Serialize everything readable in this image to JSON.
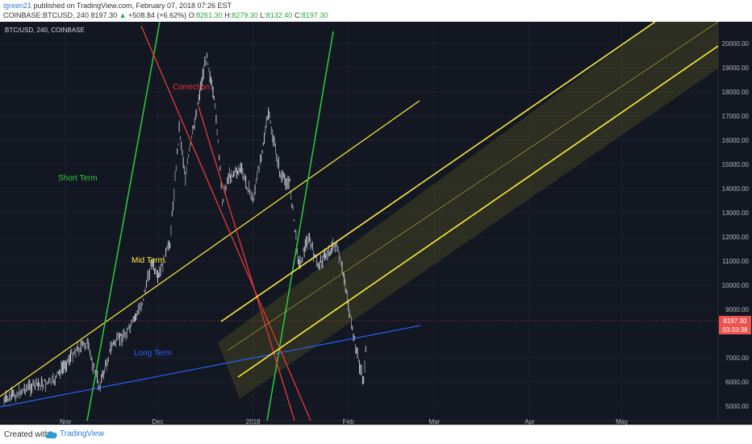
{
  "header": {
    "user": "igreen21",
    "published_text": "published on TradingView.com, February 07, 2018 07:26 EST",
    "symbol": "COINBASE:BTCUSD, 240",
    "last": "8197.30",
    "change": "+508.84 (+6.62%)",
    "open_label": "O:",
    "open": "8261.30",
    "high_label": "H:",
    "high": "8279.30",
    "low_label": "L:",
    "low": "8132.40",
    "close_label": "C:",
    "close": "8197.30"
  },
  "chart": {
    "symbol_label": "BTC/USD, 240, COINBASE",
    "price_axis_ticks": [
      "20000.00",
      "19000.00",
      "18000.00",
      "17000.00",
      "16000.00",
      "15000.00",
      "14000.00",
      "13000.00",
      "12000.00",
      "11000.00",
      "10000.00",
      "9000.00",
      "7000.00",
      "6000.00",
      "5000.00"
    ],
    "time_axis_labels": [
      "Nov",
      "Dec",
      "2018",
      "Feb",
      "Mar",
      "Apr",
      "May"
    ],
    "current_price_label": "8197.30",
    "countdown_label": "03:33:38",
    "annotations": {
      "correction": "Correction",
      "short_term": "Short Term",
      "mid_term": "Mid Term",
      "long_term": "Long Term"
    },
    "colors": {
      "background": "#131722",
      "correction": "#e53935",
      "short_term": "#2ecc40",
      "mid_term": "#ffeb3b",
      "long_term": "#2962ff",
      "price_tag": "#ef5350"
    }
  },
  "chart_data": {
    "type": "line",
    "ylim": [
      4400,
      20900
    ],
    "price_path": [
      [
        "2017-10-12",
        5200
      ],
      [
        "2017-10-20",
        5800
      ],
      [
        "2017-10-28",
        6000
      ],
      [
        "2017-11-04",
        7300
      ],
      [
        "2017-11-08",
        7600
      ],
      [
        "2017-11-12",
        5800
      ],
      [
        "2017-11-16",
        7500
      ],
      [
        "2017-11-22",
        8200
      ],
      [
        "2017-11-26",
        9300
      ],
      [
        "2017-11-29",
        11000
      ],
      [
        "2017-12-01",
        10200
      ],
      [
        "2017-12-05",
        11800
      ],
      [
        "2017-12-08",
        16500
      ],
      [
        "2017-12-10",
        14500
      ],
      [
        "2017-12-13",
        16800
      ],
      [
        "2017-12-17",
        19600
      ],
      [
        "2017-12-20",
        17000
      ],
      [
        "2017-12-22",
        13500
      ],
      [
        "2017-12-24",
        14500
      ],
      [
        "2017-12-28",
        14800
      ],
      [
        "2018-01-01",
        13500
      ],
      [
        "2018-01-06",
        17100
      ],
      [
        "2018-01-10",
        14500
      ],
      [
        "2018-01-13",
        14200
      ],
      [
        "2018-01-16",
        10800
      ],
      [
        "2018-01-19",
        12000
      ],
      [
        "2018-01-22",
        10800
      ],
      [
        "2018-01-25",
        11300
      ],
      [
        "2018-01-28",
        11700
      ],
      [
        "2018-01-31",
        10100
      ],
      [
        "2018-02-02",
        8300
      ],
      [
        "2018-02-05",
        6500
      ],
      [
        "2018-02-06",
        6000
      ],
      [
        "2018-02-07",
        8197.3
      ]
    ],
    "current_price": 8197.3
  }
}
